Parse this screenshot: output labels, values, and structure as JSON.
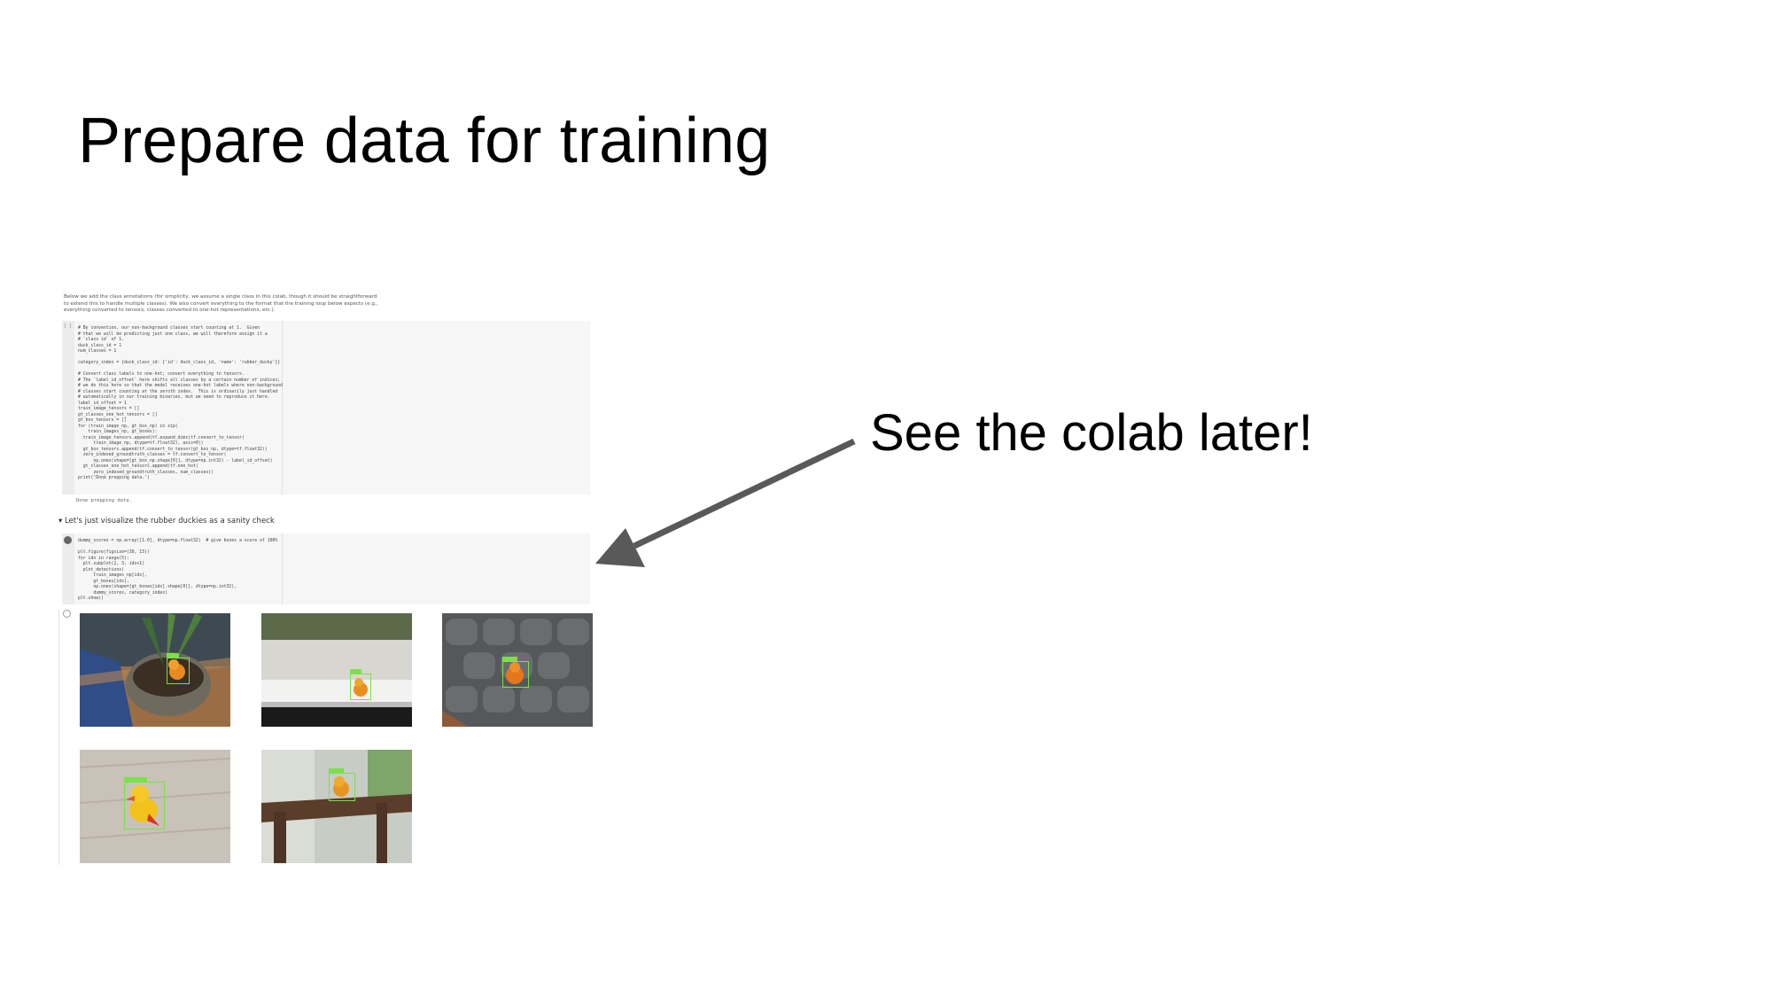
{
  "slide": {
    "title": "Prepare data for training",
    "callout": "See the colab later!"
  },
  "colab": {
    "intro_text": "Below we add the class annotations (for simplicity, we assume a single class in this colab, though it should be straightforward to extend this to handle multiple classes). We also convert everything to the format that the training loop below expects (e.g., everything converted to tensors, classes converted to one-hot representations, etc.).",
    "cell1_exec": "[ ]",
    "cell1_code": "# By convention, our non-background classes start counting at 1.  Given\n# that we will be predicting just one class, we will therefore assign it a\n# `class id` of 1.\nduck_class_id = 1\nnum_classes = 1\n\ncategory_index = {duck_class_id: {'id': duck_class_id, 'name': 'rubber_ducky'}}\n\n# Convert class labels to one-hot; convert everything to tensors.\n# The `label_id_offset` here shifts all classes by a certain number of indices;\n# we do this here so that the model receives one-hot labels where non-background\n# classes start counting at the zeroth index.  This is ordinarily just handled\n# automatically in our training binaries, but we need to reproduce it here.\nlabel_id_offset = 1\ntrain_image_tensors = []\ngt_classes_one_hot_tensors = []\ngt_box_tensors = []\nfor (train_image_np, gt_box_np) in zip(\n    train_images_np, gt_boxes):\n  train_image_tensors.append(tf.expand_dims(tf.convert_to_tensor(\n      train_image_np, dtype=tf.float32), axis=0))\n  gt_box_tensors.append(tf.convert_to_tensor(gt_box_np, dtype=tf.float32))\n  zero_indexed_groundtruth_classes = tf.convert_to_tensor(\n      np.ones(shape=[gt_box_np.shape[0]], dtype=np.int32) - label_id_offset)\n  gt_classes_one_hot_tensors.append(tf.one_hot(\n      zero_indexed_groundtruth_classes, num_classes))\nprint('Done prepping data.')",
    "cell1_output": "Done prepping data.",
    "section_heading": "Let's just visualize the rubber duckies as a sanity check",
    "cell2_code": "dummy_scores = np.array([1.0], dtype=np.float32)  # give boxes a score of 100%\n\nplt.figure(figsize=(30, 15))\nfor idx in range(5):\n  plt.subplot(2, 3, idx+1)\n  plot_detections(\n      train_images_np[idx],\n      gt_boxes[idx],\n      np.ones(shape=[gt_boxes[idx].shape[0]], dtype=np.int32),\n      dummy_scores, category_index)\nplt.show()",
    "thumbnails": [
      {
        "name": "duck-in-plant-pot"
      },
      {
        "name": "duck-on-windowsill"
      },
      {
        "name": "duck-on-grey-cushion"
      },
      {
        "name": "duck-on-wood-floor"
      },
      {
        "name": "duck-on-chair"
      }
    ]
  },
  "colors": {
    "arrow": "#595959",
    "bbox": "#7be04a",
    "code_bg": "#f6f6f6"
  }
}
